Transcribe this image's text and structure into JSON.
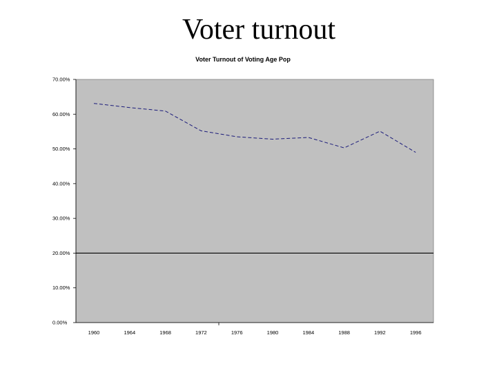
{
  "slide": {
    "title": "Voter turnout"
  },
  "chart_data": {
    "type": "line",
    "title": "Voter Turnout of Voting Age Pop",
    "xlabel": "",
    "ylabel": "",
    "categories": [
      "1960",
      "1964",
      "1968",
      "1972",
      "1976",
      "1980",
      "1984",
      "1988",
      "1992",
      "1996"
    ],
    "series": [
      {
        "values": [
          63.1,
          61.9,
          60.9,
          55.2,
          53.5,
          52.8,
          53.3,
          50.3,
          55.1,
          49.0
        ]
      }
    ],
    "ylim": [
      0,
      70
    ],
    "yticks": [
      0,
      10,
      20,
      30,
      40,
      50,
      60,
      70
    ],
    "ytick_labels": [
      "0.00%",
      "10.00%",
      "20.00%",
      "30.00%",
      "40.00%",
      "50.00%",
      "60.00%",
      "70.00%"
    ],
    "reference_line": 20,
    "grid": false,
    "legend": "none",
    "colors": {
      "plot_background": "#c0c0c0",
      "series_line": "#1a1a7a",
      "reference_line": "#000000"
    }
  }
}
